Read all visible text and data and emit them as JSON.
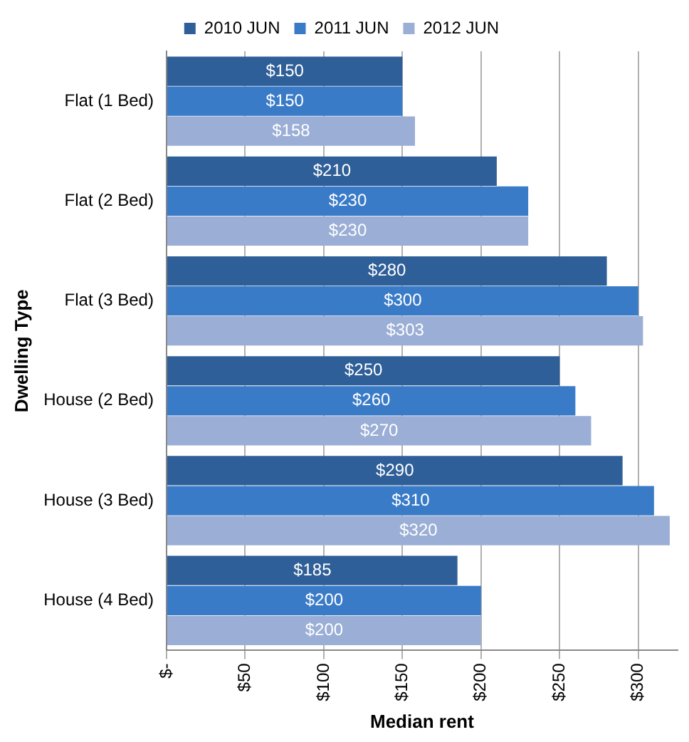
{
  "chart_data": {
    "type": "bar",
    "orientation": "horizontal",
    "xlabel": "Median rent",
    "ylabel": "Dwelling Type",
    "categories": [
      "Flat (1 Bed)",
      "Flat (2 Bed)",
      "Flat (3 Bed)",
      "House (2 Bed)",
      "House (3 Bed)",
      "House (4 Bed)"
    ],
    "series": [
      {
        "name": "2010 JUN",
        "color": "#2f5f98",
        "values": [
          150,
          210,
          280,
          250,
          290,
          185
        ],
        "value_labels": [
          "$150",
          "$210",
          "$280",
          "$250",
          "$290",
          "$185"
        ]
      },
      {
        "name": "2011 JUN",
        "color": "#3a7bc8",
        "values": [
          150,
          230,
          300,
          260,
          310,
          200
        ],
        "value_labels": [
          "$150",
          "$230",
          "$300",
          "$260",
          "$310",
          "$200"
        ]
      },
      {
        "name": "2012 JUN",
        "color": "#9aaed6",
        "values": [
          158,
          230,
          303,
          270,
          320,
          200
        ],
        "value_labels": [
          "$158",
          "$230",
          "$303",
          "$270",
          "$320",
          "$200"
        ]
      }
    ],
    "xlim": [
      0,
      325
    ],
    "xticks": [
      {
        "value": 0,
        "label": "$-"
      },
      {
        "value": 50,
        "label": "$50"
      },
      {
        "value": 100,
        "label": "$100"
      },
      {
        "value": 150,
        "label": "$150"
      },
      {
        "value": 200,
        "label": "$200"
      },
      {
        "value": 250,
        "label": "$250"
      },
      {
        "value": 300,
        "label": "$300"
      }
    ],
    "grid": "x",
    "legend": "top"
  }
}
